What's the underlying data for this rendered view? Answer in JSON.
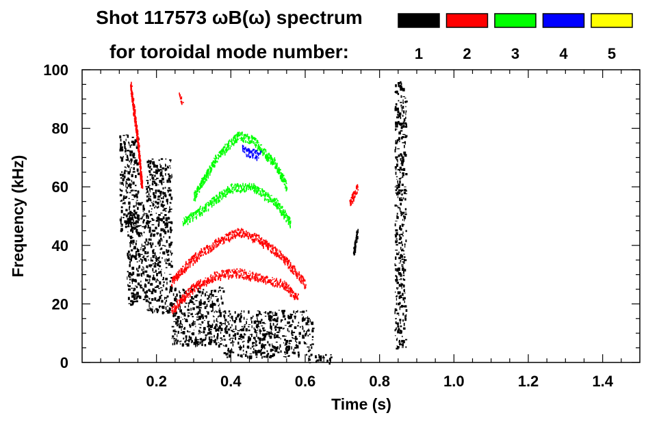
{
  "chart_data": {
    "type": "heatmap",
    "title_line1": "Shot 117573 ωB(ω) spectrum",
    "title_line2": "for toroidal mode number:",
    "xlabel": "Time (s)",
    "ylabel": "Frequency (kHz)",
    "xlim": [
      0.0,
      1.5
    ],
    "ylim": [
      0,
      100
    ],
    "x_ticks": [
      {
        "value": 0.2,
        "label": "0.2"
      },
      {
        "value": 0.4,
        "label": "0.4"
      },
      {
        "value": 0.6,
        "label": "0.6"
      },
      {
        "value": 0.8,
        "label": "0.8"
      },
      {
        "value": 1.0,
        "label": "1.0"
      },
      {
        "value": 1.2,
        "label": "1.2"
      },
      {
        "value": 1.4,
        "label": "1.4"
      }
    ],
    "y_ticks": [
      {
        "value": 0,
        "label": "0"
      },
      {
        "value": 20,
        "label": "20"
      },
      {
        "value": 40,
        "label": "40"
      },
      {
        "value": 60,
        "label": "60"
      },
      {
        "value": 80,
        "label": "80"
      },
      {
        "value": 100,
        "label": "100"
      }
    ],
    "legend": {
      "placement": "top-right",
      "entries": [
        {
          "label": "1",
          "color": "#000000"
        },
        {
          "label": "2",
          "color": "#ff0000"
        },
        {
          "label": "3",
          "color": "#00ff00"
        },
        {
          "label": "4",
          "color": "#0000ff"
        },
        {
          "label": "5",
          "color": "#ffff00"
        }
      ]
    },
    "regions": [
      {
        "mode": 1,
        "t": [
          0.1,
          0.15
        ],
        "f": [
          45,
          78
        ]
      },
      {
        "mode": 1,
        "t": [
          0.12,
          0.17
        ],
        "f": [
          20,
          55
        ]
      },
      {
        "mode": 1,
        "t": [
          0.17,
          0.24
        ],
        "f": [
          17,
          70
        ]
      },
      {
        "mode": 1,
        "t": [
          0.24,
          0.38
        ],
        "f": [
          6,
          26
        ]
      },
      {
        "mode": 1,
        "t": [
          0.38,
          0.62
        ],
        "f": [
          2,
          18
        ]
      },
      {
        "mode": 1,
        "t": [
          0.6,
          0.67
        ],
        "f": [
          0,
          3
        ]
      },
      {
        "mode": 1,
        "t": [
          0.84,
          0.87
        ],
        "f": [
          5,
          97
        ]
      }
    ],
    "tracks": [
      {
        "mode": 2,
        "points": [
          [
            0.24,
            28
          ],
          [
            0.3,
            36
          ],
          [
            0.36,
            41
          ],
          [
            0.42,
            45
          ],
          [
            0.48,
            42
          ],
          [
            0.54,
            36
          ],
          [
            0.6,
            27
          ]
        ]
      },
      {
        "mode": 2,
        "points": [
          [
            0.24,
            18
          ],
          [
            0.3,
            26
          ],
          [
            0.36,
            30
          ],
          [
            0.42,
            31
          ],
          [
            0.48,
            29
          ],
          [
            0.54,
            27
          ],
          [
            0.58,
            22
          ]
        ]
      },
      {
        "mode": 3,
        "points": [
          [
            0.27,
            48
          ],
          [
            0.34,
            54
          ],
          [
            0.4,
            60
          ],
          [
            0.46,
            60
          ],
          [
            0.52,
            55
          ],
          [
            0.56,
            48
          ]
        ]
      },
      {
        "mode": 3,
        "points": [
          [
            0.3,
            57
          ],
          [
            0.36,
            70
          ],
          [
            0.42,
            78
          ],
          [
            0.46,
            76
          ],
          [
            0.52,
            68
          ],
          [
            0.55,
            60
          ]
        ]
      },
      {
        "mode": 4,
        "points": [
          [
            0.43,
            73
          ],
          [
            0.45,
            72
          ],
          [
            0.48,
            71
          ]
        ]
      },
      {
        "mode": 2,
        "points": [
          [
            0.13,
            95
          ],
          [
            0.14,
            85
          ],
          [
            0.15,
            75
          ],
          [
            0.16,
            60
          ]
        ]
      },
      {
        "mode": 2,
        "points": [
          [
            0.26,
            91
          ],
          [
            0.27,
            90
          ]
        ]
      },
      {
        "mode": 2,
        "points": [
          [
            0.72,
            55
          ],
          [
            0.74,
            60
          ]
        ]
      },
      {
        "mode": 1,
        "points": [
          [
            0.73,
            38
          ],
          [
            0.74,
            45
          ]
        ]
      }
    ]
  }
}
